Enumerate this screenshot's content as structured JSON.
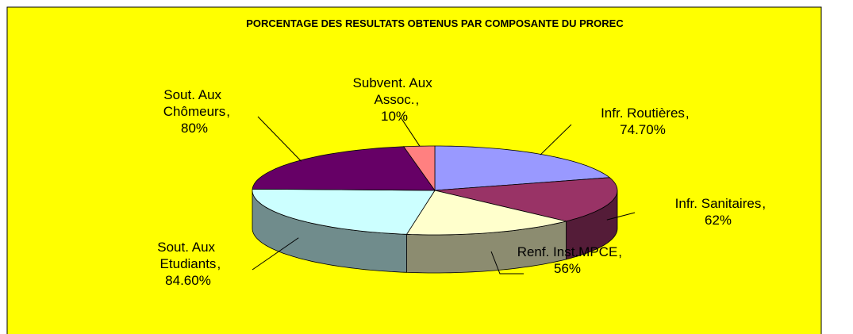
{
  "chart_data": {
    "type": "pie3d",
    "title": "PORCENTAGE DES RESULTATS OBTENUS PAR COMPOSANTE DU PROREC",
    "categories": [
      "Infr. Routières",
      "Infr. Sanitaires",
      "Renf. Inst.MPCE",
      "Sout. Aux Etudiants",
      "Sout. Aux Chômeurs",
      "Subvent. Aux Assoc. "
    ],
    "values": [
      74.7,
      62,
      56,
      84.6,
      80,
      10
    ],
    "value_labels": [
      "74.70%",
      "62%",
      "56%",
      "84.60%",
      "80%",
      "10%"
    ],
    "label_separator": ",",
    "colors": [
      "#9999ff",
      "#993366",
      "#ffffcc",
      "#ccffff",
      "#660066",
      "#ff8080"
    ]
  }
}
